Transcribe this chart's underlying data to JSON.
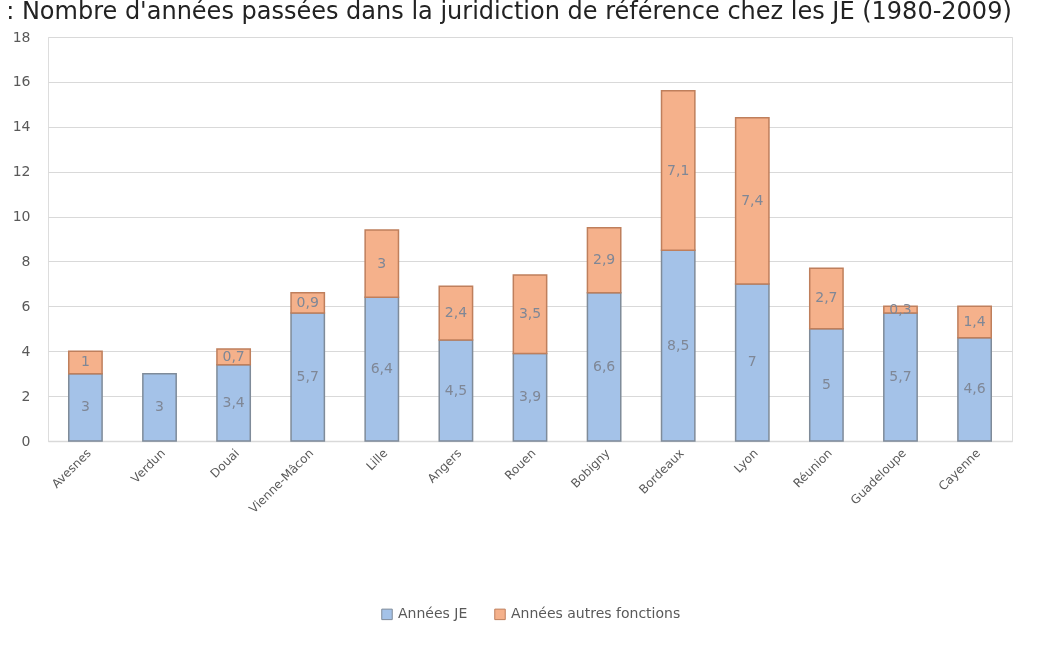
{
  "chart_data": {
    "type": "bar",
    "title": ": Nombre d'années passées dans la juridiction de référence chez les JE (1980-2009)",
    "categories": [
      "Avesnes",
      "Verdun",
      "Douai",
      "Vienne-Mâcon",
      "Lille",
      "Angers",
      "Rouen",
      "Bobigny",
      "Bordeaux",
      "Lyon",
      "Réunion",
      "Guadeloupe",
      "Cayenne"
    ],
    "stacked": true,
    "series": [
      {
        "name": "Années JE",
        "color": "#a4c2e8",
        "values": [
          3,
          3,
          3.4,
          5.7,
          6.4,
          4.5,
          3.9,
          6.6,
          8.5,
          7,
          5,
          5.7,
          4.6
        ],
        "value_labels": [
          "3",
          "3",
          "3,4",
          "5,7",
          "6,4",
          "4,5",
          "3,9",
          "6,6",
          "8,5",
          "7",
          "5",
          "5,7",
          "4,6"
        ]
      },
      {
        "name": "Années autres fonctions",
        "color": "#f5b18b",
        "values": [
          1,
          null,
          0.7,
          0.9,
          3,
          2.4,
          3.5,
          2.9,
          7.1,
          7.4,
          2.7,
          0.3,
          1.4
        ],
        "value_labels": [
          "1",
          null,
          "0,7",
          "0,9",
          "3",
          "2,4",
          "3,5",
          "2,9",
          "7,1",
          "7,4",
          "2,7",
          "0,3",
          "1,4"
        ]
      }
    ],
    "ylim": [
      0,
      18
    ],
    "yticks": [
      0,
      2,
      4,
      6,
      8,
      10,
      12,
      14,
      16,
      18
    ],
    "grid": "y",
    "legend": "bottom"
  }
}
